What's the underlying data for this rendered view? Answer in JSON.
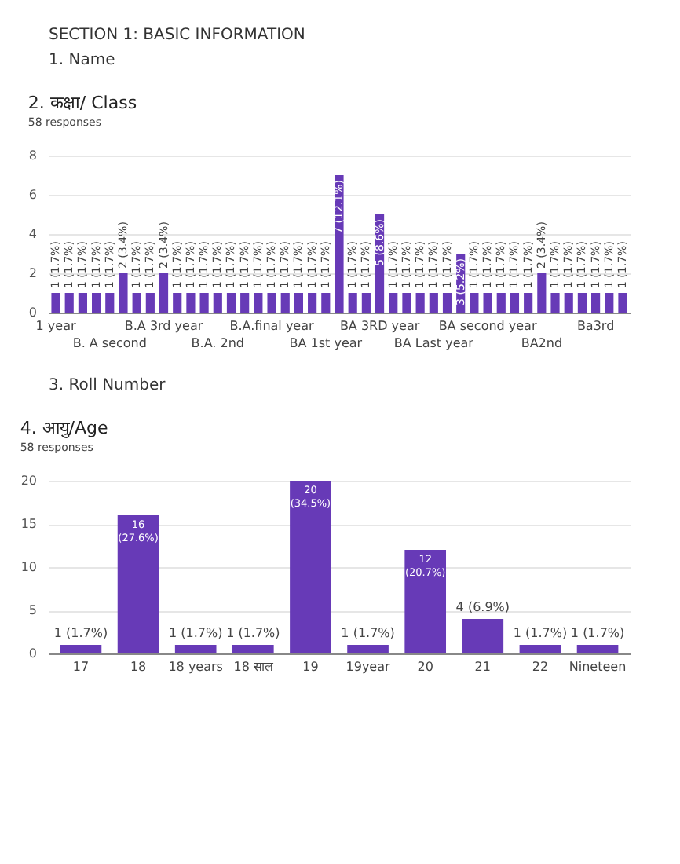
{
  "chart_data": [
    {
      "type": "bar",
      "title": "2. कक्षा/ Class",
      "subtitle": "58 responses",
      "annotations": [
        "SECTION 1: BASIC INFORMATION",
        "1.  Name"
      ],
      "categories": [
        "1 year",
        null,
        null,
        null,
        "B. A second",
        null,
        null,
        null,
        "B.A 3rd year",
        null,
        null,
        null,
        "B.A. 2nd",
        null,
        null,
        null,
        "B.A.final year",
        null,
        null,
        null,
        "BA 1st year",
        null,
        null,
        null,
        "BA 3RD year",
        null,
        null,
        null,
        "BA Last year",
        null,
        null,
        null,
        "BA second year",
        null,
        null,
        null,
        "BA2nd",
        null,
        null,
        null,
        "Ba3rd",
        null,
        null
      ],
      "values": [
        1,
        1,
        1,
        1,
        1,
        2,
        1,
        1,
        2,
        1,
        1,
        1,
        1,
        1,
        1,
        1,
        1,
        1,
        1,
        1,
        1,
        7,
        1,
        1,
        5,
        1,
        1,
        1,
        1,
        1,
        3,
        1,
        1,
        1,
        1,
        1,
        2,
        1,
        1,
        1,
        1,
        1,
        1
      ],
      "value_labels": [
        "1 (1.7%)",
        "1 (1.7%)",
        "1 (1.7%)",
        "1 (1.7%)",
        "1 (1.7%)",
        "2 (3.4%)",
        "1 (1.7%)",
        "1 (1.7%)",
        "2 (3.4%)",
        "1 (1.7%)",
        "1 (1.7%)",
        "1 (1.7%)",
        "1 (1.7%)",
        "1 (1.7%)",
        "1 (1.7%)",
        "1 (1.7%)",
        "1 (1.7%)",
        "1 (1.7%)",
        "1 (1.7%)",
        "1 (1.7%)",
        "1 (1.7%)",
        "7 (12.1%)",
        "1 (1.7%)",
        "1 (1.7%)",
        "5 (8.6%)",
        "1 (1.7%)",
        "1 (1.7%)",
        "1 (1.7%)",
        "1 (1.7%)",
        "1 (1.7%)",
        "3 (5.2%)",
        "1 (1.7%)",
        "1 (1.7%)",
        "1 (1.7%)",
        "1 (1.7%)",
        "1 (1.7%)",
        "2 (3.4%)",
        "1 (1.7%)",
        "1 (1.7%)",
        "1 (1.7%)",
        "1 (1.7%)",
        "1 (1.7%)",
        "1 (1.7%)"
      ],
      "color": "#673ab7",
      "ylim": [
        0,
        8
      ],
      "yticks": [
        0,
        2,
        4,
        6,
        8
      ],
      "grid": "y"
    },
    {
      "type": "bar",
      "title": "4. आयु/Age",
      "subtitle": "58 responses",
      "annotations": [
        "3. Roll Number"
      ],
      "categories": [
        "17",
        "18",
        "18 years",
        "18 साल",
        "19",
        "19year",
        "20",
        "21",
        "22",
        "Nineteen"
      ],
      "values": [
        1,
        16,
        1,
        1,
        20,
        1,
        12,
        4,
        1,
        1
      ],
      "value_labels": [
        "1 (1.7%)",
        "16 (27.6%)",
        "1 (1.7%)",
        "1 (1.7%)",
        "20 (34.5%)",
        "1 (1.7%)",
        "12 (20.7%)",
        "4 (6.9%)",
        "1 (1.7%)",
        "1 (1.7%)"
      ],
      "color": "#673ab7",
      "ylim": [
        0,
        20
      ],
      "yticks": [
        0,
        5,
        10,
        15,
        20
      ],
      "grid": "y"
    }
  ]
}
